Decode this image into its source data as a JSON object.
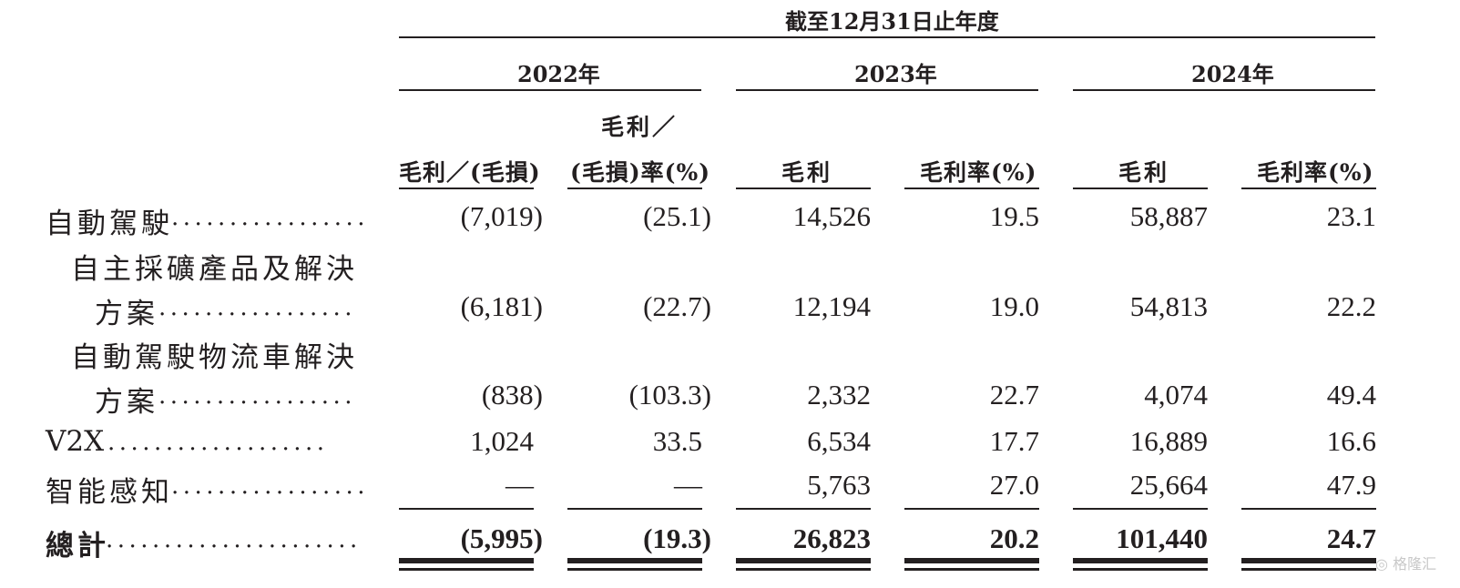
{
  "header": {
    "period": "截至12月31日止年度"
  },
  "years": [
    "2022年",
    "2023年",
    "2024年"
  ],
  "columns": {
    "gp_2022": "毛利／(毛損)",
    "rate_2022_line1": "毛利／",
    "rate_2022_line2": "(毛損)率(%)",
    "gp_2023": "毛利",
    "rate_2023": "毛利率(%)",
    "gp_2024": "毛利",
    "rate_2024": "毛利率(%)"
  },
  "rows": [
    {
      "label": "自動駕駛",
      "dots": ".................",
      "values": [
        "(7,019)",
        "(25.1)",
        "14,526",
        "19.5",
        "58,887",
        "23.1"
      ]
    },
    {
      "label_line1": "自主採礦產品及解決",
      "label": "方案",
      "dots": ".................",
      "values": [
        "(6,181)",
        "(22.7)",
        "12,194",
        "19.0",
        "54,813",
        "22.2"
      ]
    },
    {
      "label_line1": "自動駕駛物流車解決",
      "label": "方案",
      "dots": ".................",
      "values": [
        "(838)",
        "(103.3)",
        "2,332",
        "22.7",
        "4,074",
        "49.4"
      ]
    },
    {
      "label": "V2X",
      "dots": "...................",
      "values": [
        "1,024",
        "33.5",
        "6,534",
        "17.7",
        "16,889",
        "16.6"
      ]
    },
    {
      "label": "智能感知",
      "dots": ".................",
      "values": [
        "—",
        "—",
        "5,763",
        "27.0",
        "25,664",
        "47.9"
      ]
    }
  ],
  "total": {
    "label": "總計",
    "dots": "......................",
    "values": [
      "(5,995)",
      "(19.3)",
      "26,823",
      "20.2",
      "101,440",
      "24.7"
    ]
  },
  "watermark": "格隆汇"
}
